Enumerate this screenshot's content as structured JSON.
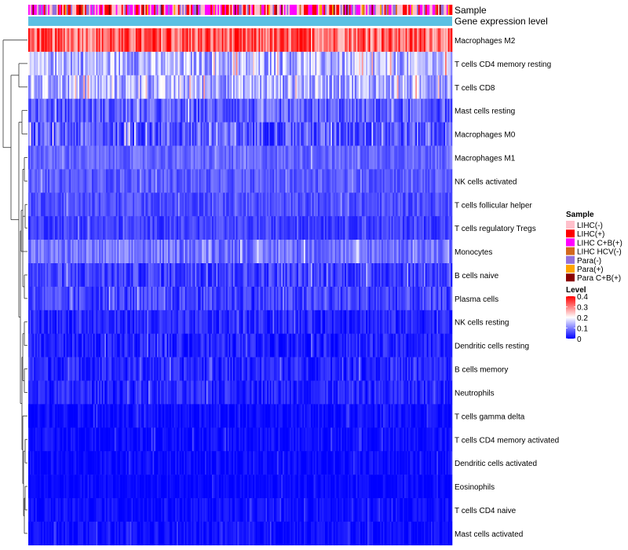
{
  "chart_data": {
    "type": "heatmap",
    "title": "",
    "annotations": [
      {
        "name": "Sample",
        "kind": "categorical"
      },
      {
        "name": "Gene expression level",
        "kind": "constant",
        "color": "#5bc0e3"
      }
    ],
    "rows": [
      {
        "label": "Macrophages M2",
        "mean": 0.32,
        "spread": 0.08
      },
      {
        "label": "T cells CD4 memory resting",
        "mean": 0.14,
        "spread": 0.07
      },
      {
        "label": "T cells CD8",
        "mean": 0.14,
        "spread": 0.07
      },
      {
        "label": "Mast cells resting",
        "mean": 0.07,
        "spread": 0.05
      },
      {
        "label": "Macrophages M0",
        "mean": 0.07,
        "spread": 0.06
      },
      {
        "label": "Macrophages M1",
        "mean": 0.08,
        "spread": 0.03
      },
      {
        "label": "NK cells activated",
        "mean": 0.07,
        "spread": 0.03
      },
      {
        "label": "T cells follicular helper",
        "mean": 0.06,
        "spread": 0.03
      },
      {
        "label": "T cells regulatory  Tregs",
        "mean": 0.05,
        "spread": 0.03
      },
      {
        "label": "Monocytes",
        "mean": 0.09,
        "spread": 0.04
      },
      {
        "label": "B cells naive",
        "mean": 0.05,
        "spread": 0.04
      },
      {
        "label": "Plasma cells",
        "mean": 0.05,
        "spread": 0.04
      },
      {
        "label": "NK cells resting",
        "mean": 0.03,
        "spread": 0.03
      },
      {
        "label": "Dendritic cells resting",
        "mean": 0.025,
        "spread": 0.03
      },
      {
        "label": "B cells memory",
        "mean": 0.03,
        "spread": 0.03
      },
      {
        "label": "Neutrophils",
        "mean": 0.03,
        "spread": 0.03
      },
      {
        "label": "T cells gamma delta",
        "mean": 0.01,
        "spread": 0.02
      },
      {
        "label": "T cells CD4 memory activated",
        "mean": 0.01,
        "spread": 0.02
      },
      {
        "label": "Dendritic cells activated",
        "mean": 0.008,
        "spread": 0.02
      },
      {
        "label": "Eosinophils",
        "mean": 0.005,
        "spread": 0.015
      },
      {
        "label": "T cells CD4 naive",
        "mean": 0.01,
        "spread": 0.02
      },
      {
        "label": "Mast cells activated",
        "mean": 0.01,
        "spread": 0.02
      }
    ],
    "n_columns": 300,
    "legend": {
      "sample": {
        "title": "Sample",
        "entries": [
          {
            "label": "LIHC(-)",
            "color": "#ffc0cb"
          },
          {
            "label": "LIHC(+)",
            "color": "#ff0000"
          },
          {
            "label": "LIHC C+B(+)",
            "color": "#ff00ff"
          },
          {
            "label": "LIHC HCV(-)",
            "color": "#d2691e"
          },
          {
            "label": "Para(-)",
            "color": "#9370db"
          },
          {
            "label": "Para(+)",
            "color": "#ffa500"
          },
          {
            "label": "Para C+B(+)",
            "color": "#8b0000"
          }
        ]
      },
      "level": {
        "title": "Level",
        "range": [
          0,
          0.4
        ],
        "ticks": [
          "0.4",
          "0.3",
          "0.2",
          "0.1",
          "0"
        ],
        "colors": {
          "low": "#0000ff",
          "mid": "#ffffff",
          "high": "#ff0000"
        }
      }
    }
  }
}
